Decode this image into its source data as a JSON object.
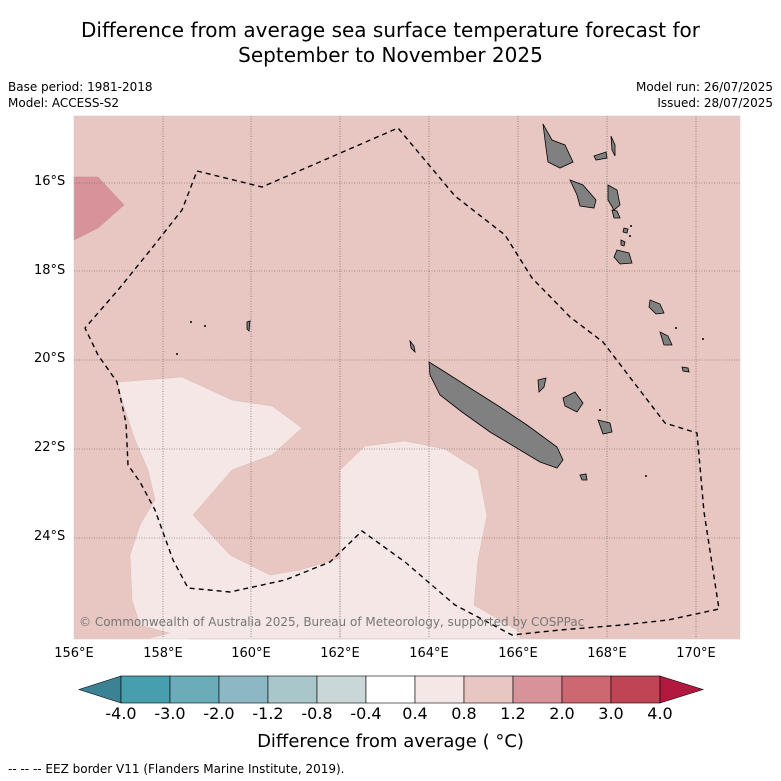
{
  "title": {
    "line1": "Difference from average sea surface temperature forecast for",
    "line2": "September to November 2025"
  },
  "meta": {
    "base_period": "Base period: 1981-2018",
    "model": "Model: ACCESS-S2",
    "model_run": "Model run: 26/07/2025",
    "issued": "Issued: 28/07/2025"
  },
  "map": {
    "lon_range": [
      156,
      171
    ],
    "lat_range": [
      -26.2,
      -14.4
    ],
    "lat_labels": [
      "16°S",
      "18°S",
      "20°S",
      "22°S",
      "24°S"
    ],
    "lon_labels": [
      "156°E",
      "158°E",
      "160°E",
      "162°E",
      "164°E",
      "166°E",
      "168°E",
      "170°E"
    ],
    "copyright": "© Commonwealth of Australia 2025, Bureau of Meteorology, supported by COSPPac",
    "colors": {
      "ocean_0.8_1.2": "#e8c6c1",
      "ocean_0.4_0.8": "#f4e7e5",
      "ocean_1.2_2.0": "#d8939a",
      "land": "#808080"
    }
  },
  "colorbar": {
    "ticks": [
      "-4.0",
      "-3.0",
      "-2.0",
      "-1.2",
      "-0.8",
      "-0.4",
      "0.4",
      "0.8",
      "1.2",
      "2.0",
      "3.0",
      "4.0"
    ],
    "colors": [
      "#479fae",
      "#6cacb9",
      "#8db8c3",
      "#a9c7ca",
      "#cad7d8",
      "#ffffff",
      "#f4e7e5",
      "#e8c6c1",
      "#d8939a",
      "#cd6873",
      "#bf4455"
    ],
    "under_color": "#3b8294",
    "over_color": "#b3193f",
    "label": "Difference from average ( °C)"
  },
  "footer": "-- -- -- EEZ border V11 (Flanders Marine Institute, 2019)."
}
